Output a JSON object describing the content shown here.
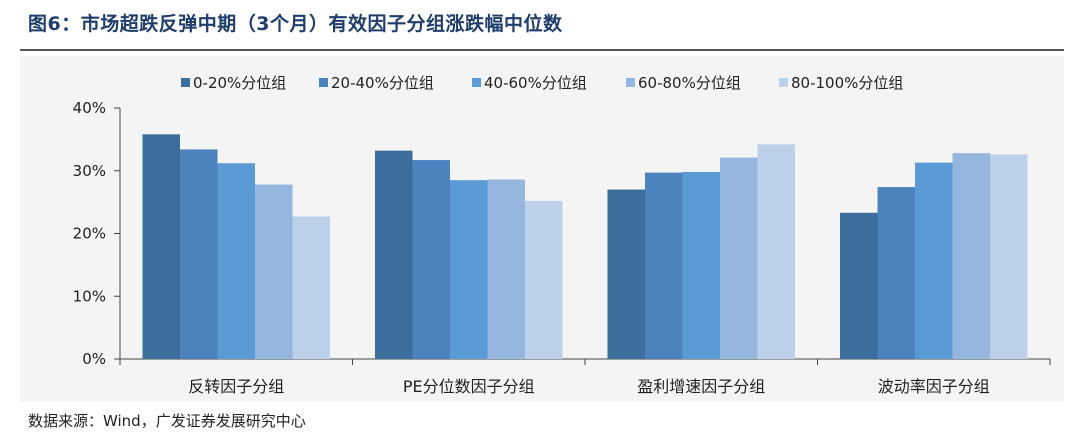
{
  "header": {
    "title": "图6：市场超跌反弹中期（3个月）有效因子分组涨跌幅中位数"
  },
  "footer": {
    "source": "数据来源：Wind，广发证券发展研究中心"
  },
  "chart_data": {
    "type": "bar",
    "title": "图6：市场超跌反弹中期（3个月）有效因子分组涨跌幅中位数",
    "xlabel": "",
    "ylabel": "",
    "categories": [
      "反转因子分组",
      "PE分位数因子分组",
      "盈利增速因子分组",
      "波动率因子分组"
    ],
    "ylim": [
      0,
      40
    ],
    "yticks": [
      "0%",
      "10%",
      "20%",
      "30%",
      "40%"
    ],
    "grid": false,
    "legend_position": "top",
    "series": [
      {
        "name": "0-20%分位组",
        "color": "#3d6d9b",
        "values": [
          35.8,
          33.2,
          27.0,
          23.3
        ]
      },
      {
        "name": "20-40%分位组",
        "color": "#4c83bf",
        "values": [
          33.4,
          31.7,
          29.7,
          27.4
        ]
      },
      {
        "name": "40-60%分位组",
        "color": "#5b9bd5",
        "values": [
          31.2,
          28.5,
          29.8,
          31.3
        ]
      },
      {
        "name": "60-80%分位组",
        "color": "#95b6df",
        "values": [
          27.8,
          28.6,
          32.1,
          32.8
        ]
      },
      {
        "name": "80-100%分位组",
        "color": "#bcd0ea",
        "values": [
          22.7,
          25.2,
          34.2,
          32.6
        ]
      }
    ]
  }
}
